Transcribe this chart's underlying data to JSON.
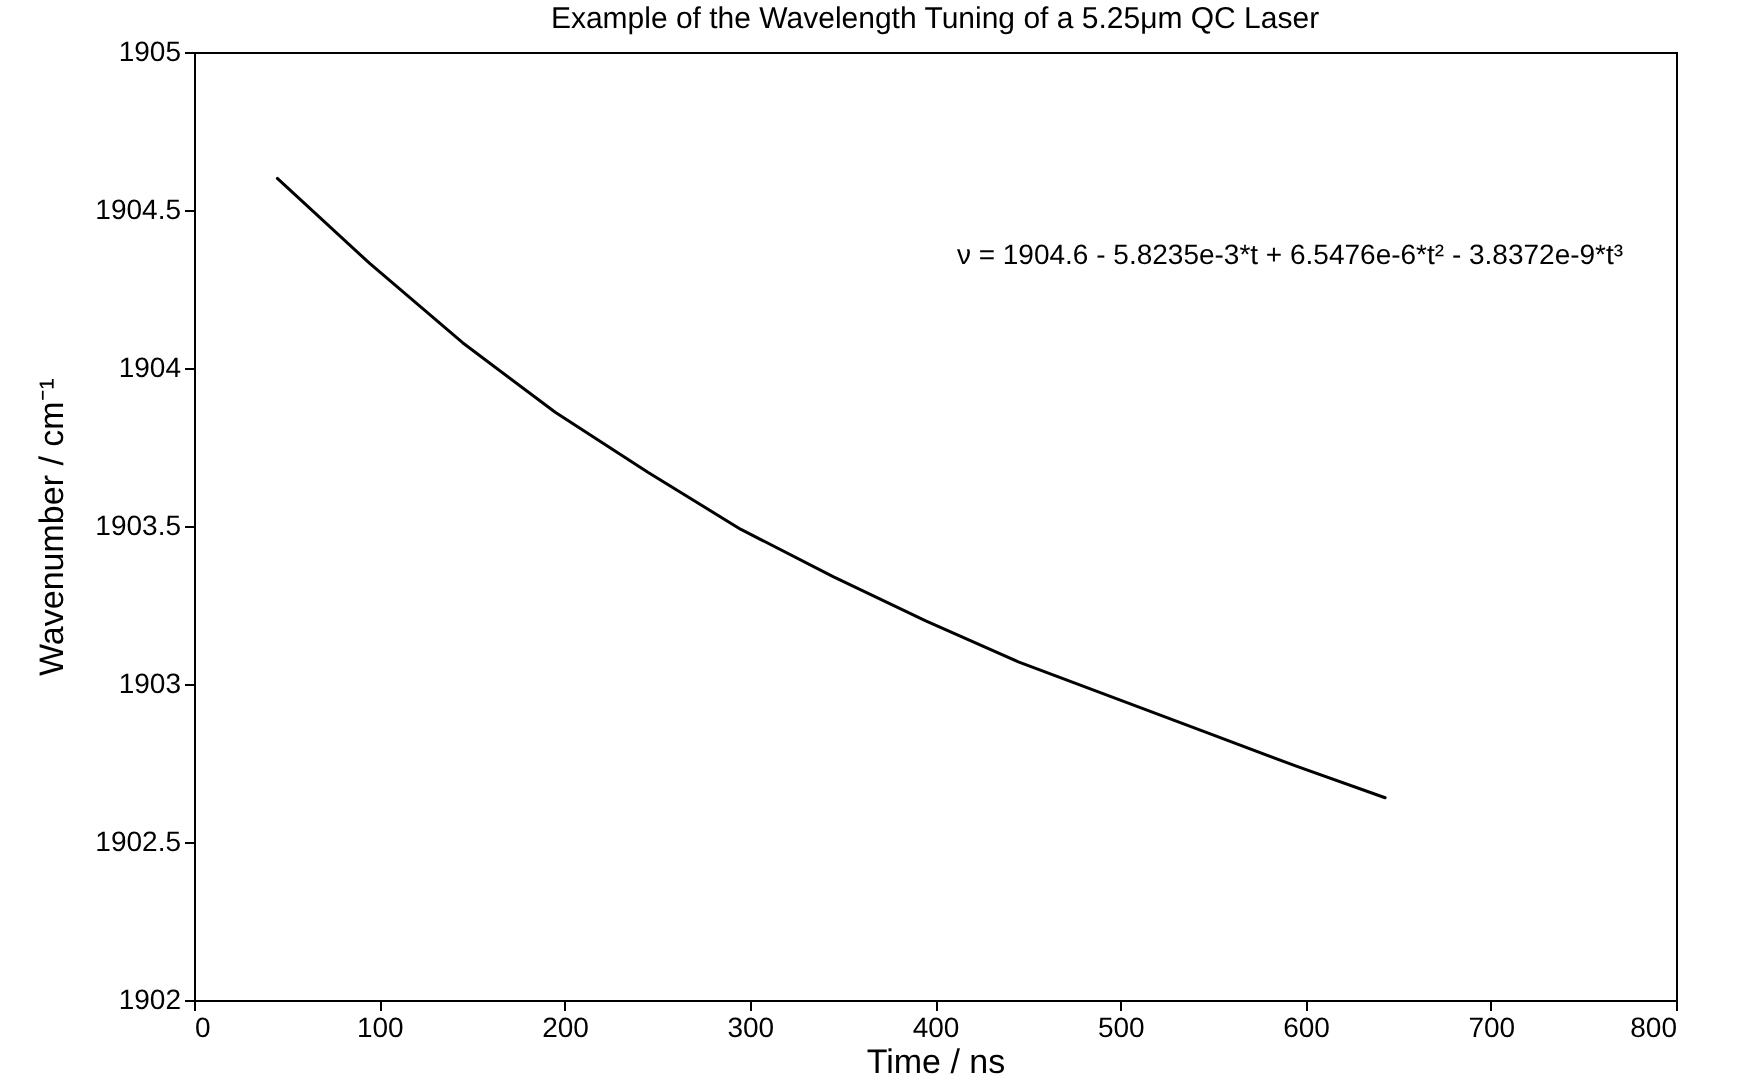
{
  "chart_data": {
    "type": "line",
    "title": "Example of the Wavelength Tuning of a 5.25μm QC Laser",
    "xlabel": "Time / ns",
    "ylabel": "Wavenumber / cm⁻¹",
    "annotations": [
      "ν = 1904.6 - 5.8235e-3*t + 6.5476e-6*t² - 3.8372e-9*t³"
    ],
    "x": [
      45,
      95,
      145,
      195,
      245,
      295,
      345,
      395,
      445,
      495,
      545,
      595,
      643
    ],
    "series": [
      {
        "color": "#000000",
        "values": [
          1904.6,
          1904.33,
          1904.08,
          1903.86,
          1903.67,
          1903.49,
          1903.34,
          1903.2,
          1903.07,
          1902.96,
          1902.85,
          1902.74,
          1902.64
        ]
      }
    ],
    "xlim": [
      0,
      800
    ],
    "xticks": [
      0,
      100,
      200,
      300,
      400,
      500,
      600,
      700,
      800
    ],
    "ylim": [
      1902,
      1905
    ],
    "yticks": [
      1902,
      1902.5,
      1903,
      1903.5,
      1904,
      1904.5,
      1905
    ],
    "grid": false,
    "marker": "none",
    "line_style": "solid"
  }
}
